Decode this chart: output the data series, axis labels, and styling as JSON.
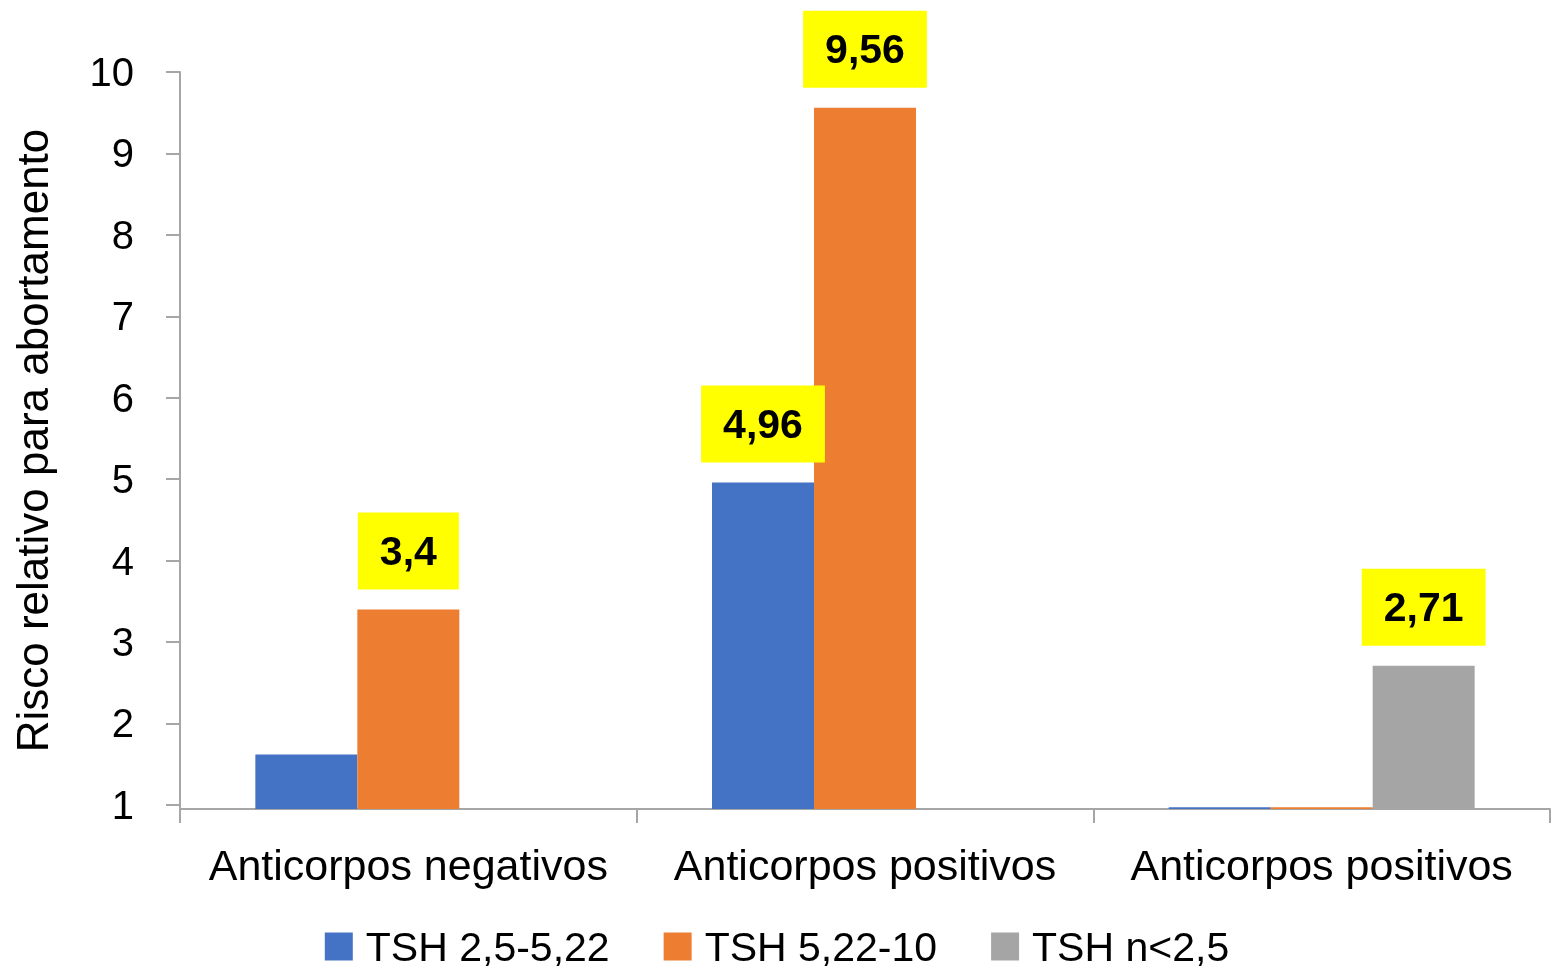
{
  "chart_data": {
    "type": "bar",
    "ylabel": "Risco relativo para abortamento",
    "categories": [
      "Anticorpos negativos",
      "Anticorpos positivos",
      "Anticorpos positivos"
    ],
    "series": [
      {
        "name": "TSH 2,5-5,22",
        "color": "#4472c4",
        "values": [
          1.62,
          4.96,
          0.97
        ],
        "value_labels": [
          null,
          "4,96",
          null
        ]
      },
      {
        "name": "TSH 5,22-10",
        "color": "#ed7d31",
        "values": [
          3.4,
          9.56,
          0.97
        ],
        "value_labels": [
          "3,4",
          "9,56",
          null
        ]
      },
      {
        "name": "TSH n<2,5",
        "color": "#a5a5a5",
        "values": [
          null,
          null,
          2.71
        ],
        "value_labels": [
          null,
          null,
          "2,71"
        ]
      }
    ],
    "ylim": [
      0.95,
      10
    ],
    "yticks": [
      1,
      2,
      3,
      4,
      5,
      6,
      7,
      8,
      9,
      10
    ],
    "grid": false,
    "legend": "bottom"
  }
}
